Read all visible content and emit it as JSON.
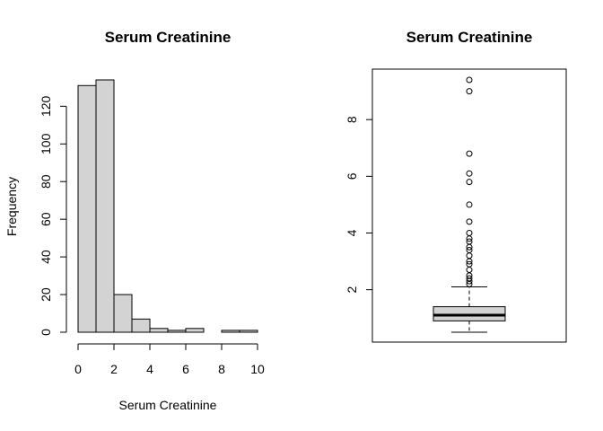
{
  "chart_data": [
    {
      "type": "bar",
      "subtype": "histogram",
      "title": "Serum Creatinine",
      "xlabel": "Serum Creatinine",
      "ylabel": "Frequency",
      "bins": [
        [
          0,
          1
        ],
        [
          1,
          2
        ],
        [
          2,
          3
        ],
        [
          3,
          4
        ],
        [
          4,
          5
        ],
        [
          5,
          6
        ],
        [
          6,
          7
        ],
        [
          7,
          8
        ],
        [
          8,
          9
        ],
        [
          9,
          10
        ]
      ],
      "values": [
        131,
        134,
        20,
        7,
        2,
        1,
        2,
        0,
        1,
        1
      ],
      "xlim": [
        0,
        10
      ],
      "ylim": [
        0,
        134
      ],
      "xticks": [
        "0",
        "2",
        "4",
        "6",
        "8",
        "10"
      ],
      "yticks": [
        "0",
        "20",
        "40",
        "60",
        "80",
        "100",
        "120"
      ],
      "fill_color": "#d3d3d3",
      "grid": false
    },
    {
      "type": "box",
      "title": "Serum Creatinine",
      "ylim": [
        0.5,
        9.4
      ],
      "yticks": [
        "2",
        "4",
        "6",
        "8"
      ],
      "stats": {
        "min": 0.5,
        "q1": 0.9,
        "median": 1.1,
        "q3": 1.4,
        "max": 2.1
      },
      "outliers": [
        2.2,
        2.3,
        2.4,
        2.5,
        2.7,
        2.9,
        3.0,
        3.2,
        3.4,
        3.5,
        3.7,
        3.8,
        4.0,
        4.4,
        5.0,
        5.8,
        6.1,
        6.8,
        9.0,
        9.4
      ],
      "fill_color": "#d3d3d3",
      "grid": false
    }
  ]
}
